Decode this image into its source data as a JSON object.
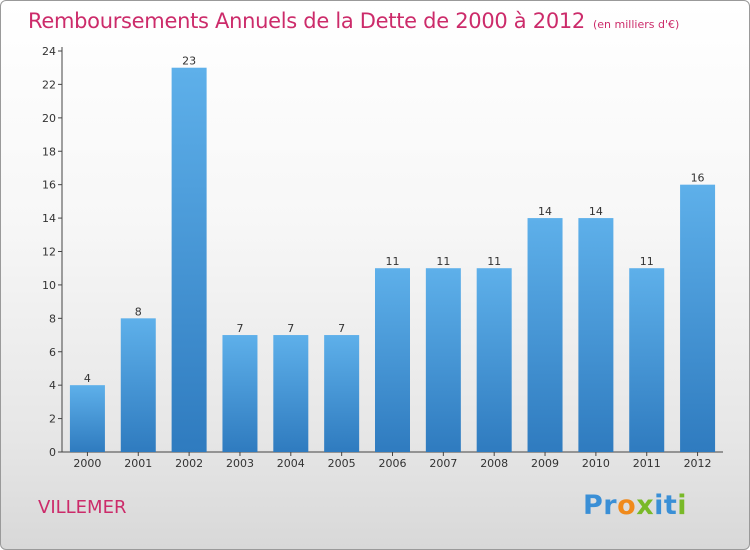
{
  "header": {
    "title": "Remboursements Annuels de la Dette de 2000 à 2012",
    "subtitle": "(en milliers d'€)"
  },
  "footer": {
    "city": "VILLEMER",
    "logo_letters": [
      {
        "ch": "P",
        "color": "#3a8fd6"
      },
      {
        "ch": "r",
        "color": "#3a8fd6"
      },
      {
        "ch": "o",
        "color": "#f08a1c"
      },
      {
        "ch": "x",
        "color": "#79b928"
      },
      {
        "ch": "i",
        "color": "#3a8fd6"
      },
      {
        "ch": "t",
        "color": "#3a8fd6"
      },
      {
        "ch": "i",
        "color": "#79b928"
      }
    ]
  },
  "colors": {
    "title": "#cc2b6a",
    "bar_top": "#5eb0ea",
    "bar_bottom": "#2f7bbf",
    "axis": "#444444"
  },
  "chart_data": {
    "type": "bar",
    "title": "Remboursements Annuels de la Dette de 2000 à 2012",
    "subtitle": "(en milliers d'€)",
    "categories": [
      "2000",
      "2001",
      "2002",
      "2003",
      "2004",
      "2005",
      "2006",
      "2007",
      "2008",
      "2009",
      "2010",
      "2011",
      "2012"
    ],
    "values": [
      4,
      8,
      23,
      7,
      7,
      7,
      11,
      11,
      11,
      14,
      14,
      11,
      16
    ],
    "ylim": [
      0,
      24
    ],
    "yticks": [
      0,
      2,
      4,
      6,
      8,
      10,
      12,
      14,
      16,
      18,
      20,
      22,
      24
    ],
    "grid": false,
    "legend": "none"
  }
}
